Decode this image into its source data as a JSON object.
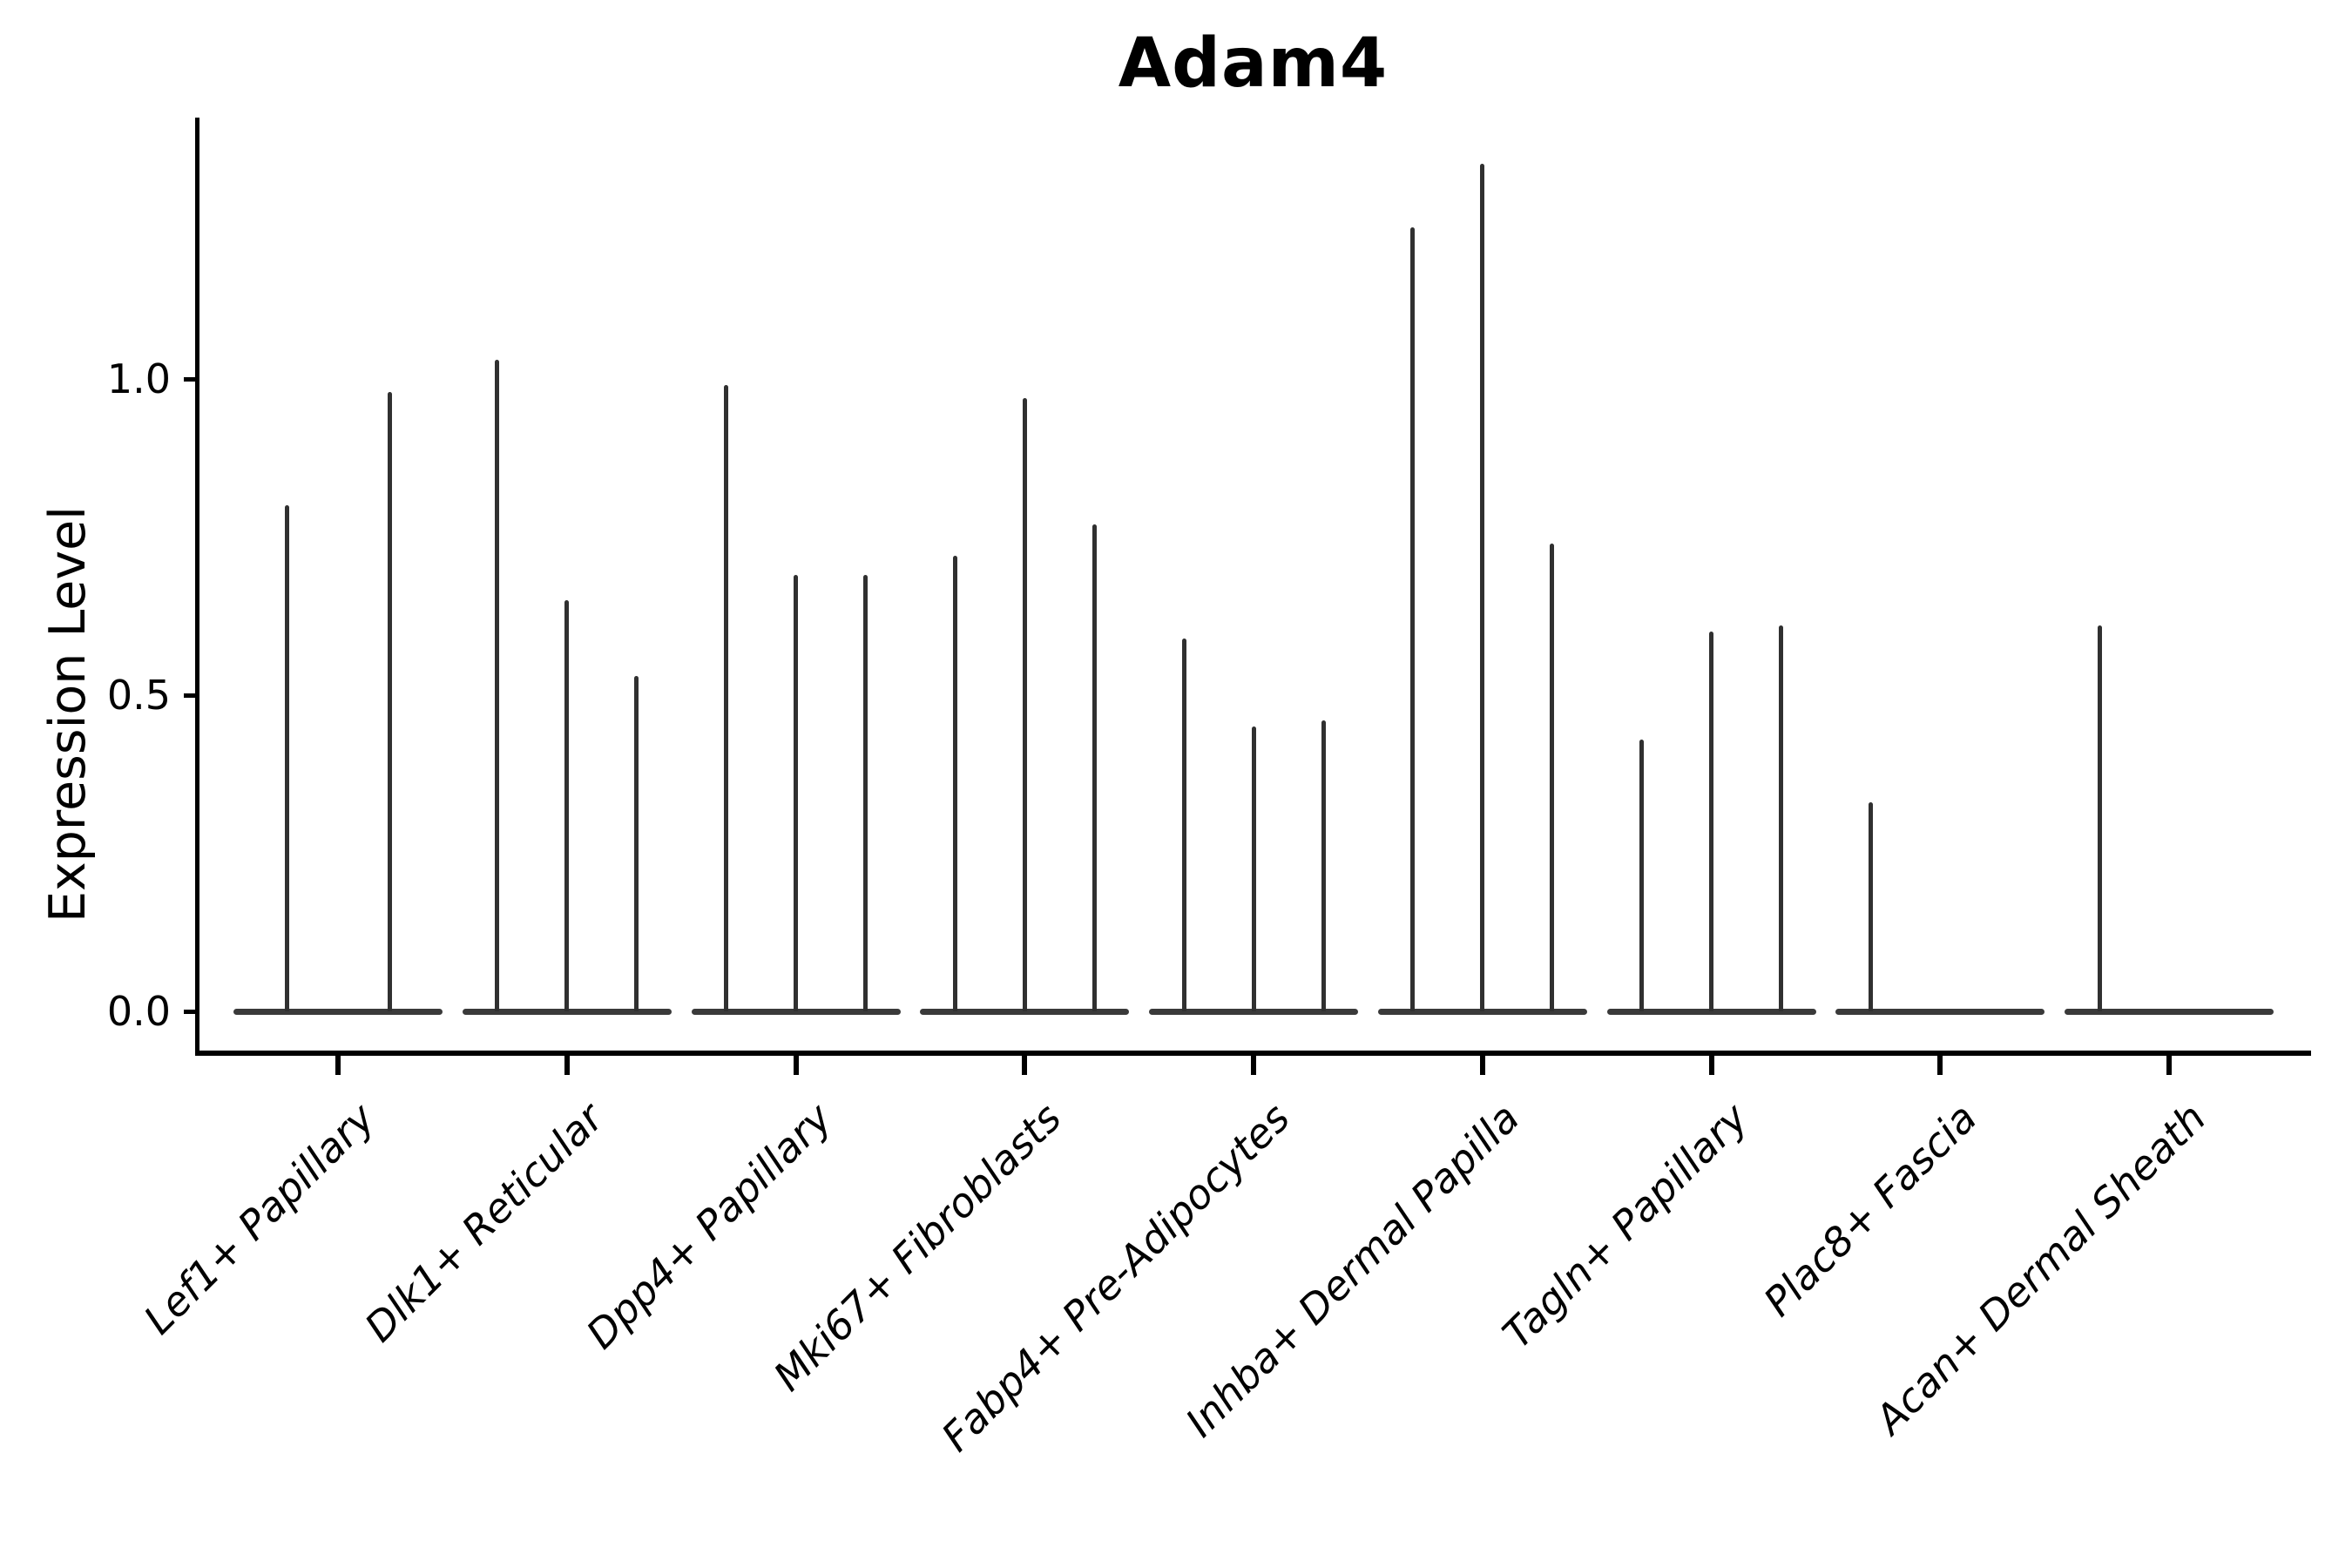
{
  "figure": {
    "title": "Adam4",
    "y_axis": {
      "label": "Expression Level",
      "tick_labels": [
        "0.0",
        "0.5",
        "1.0"
      ]
    },
    "colors": {
      "background": "#ffffff",
      "axis": "#000000",
      "text": "#000000",
      "violin_spike": "#303030",
      "violin_base": "#3a3a3a"
    }
  },
  "chart_data": {
    "type": "violin",
    "title": "Adam4",
    "xlabel": "",
    "ylabel": "Expression Level",
    "ylim": [
      -0.07,
      1.41
    ],
    "yticks": [
      0.0,
      0.5,
      1.0
    ],
    "grid": false,
    "legend": "none",
    "description": "Needle-like violins: each category shows 1-3 extremely narrow violins with a wide flat base at y=0; 'maxima' lists each violin's tip value (0 = flat violin with no spike).",
    "categories": [
      "Lef1+ Papillary",
      "Dlk1+ Reticular",
      "Dpp4+ Papillary",
      "Mki67+ Fibroblasts",
      "Fabp4+ Pre-Adipocytes",
      "Inhba+ Dermal Papilla",
      "Tagln+ Papillary",
      "Plac8+ Fascia",
      "Acan+ Dermal Sheath"
    ],
    "violins": [
      {
        "category": "Lef1+ Papillary",
        "maxima": [
          0.8,
          0.98
        ]
      },
      {
        "category": "Dlk1+ Reticular",
        "maxima": [
          1.03,
          0.65,
          0.53
        ]
      },
      {
        "category": "Dpp4+ Papillary",
        "maxima": [
          0.99,
          0.69,
          0.69
        ]
      },
      {
        "category": "Mki67+ Fibroblasts",
        "maxima": [
          0.72,
          0.97,
          0.77
        ]
      },
      {
        "category": "Fabp4+ Pre-Adipocytes",
        "maxima": [
          0.59,
          0.45,
          0.46
        ]
      },
      {
        "category": "Inhba+ Dermal Papilla",
        "maxima": [
          1.24,
          1.34,
          0.74
        ]
      },
      {
        "category": "Tagln+ Papillary",
        "maxima": [
          0.43,
          0.6,
          0.61
        ]
      },
      {
        "category": "Plac8+ Fascia",
        "maxima": [
          0.33,
          0,
          0
        ]
      },
      {
        "category": "Acan+ Dermal Sheath",
        "maxima": [
          0.61,
          0,
          0
        ]
      }
    ]
  }
}
